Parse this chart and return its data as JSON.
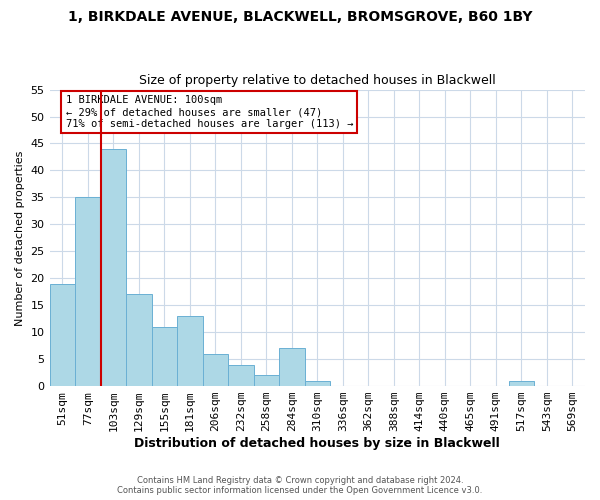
{
  "title1": "1, BIRKDALE AVENUE, BLACKWELL, BROMSGROVE, B60 1BY",
  "title2": "Size of property relative to detached houses in Blackwell",
  "xlabel": "Distribution of detached houses by size in Blackwell",
  "ylabel": "Number of detached properties",
  "bin_labels": [
    "51sqm",
    "77sqm",
    "103sqm",
    "129sqm",
    "155sqm",
    "181sqm",
    "206sqm",
    "232sqm",
    "258sqm",
    "284sqm",
    "310sqm",
    "336sqm",
    "362sqm",
    "388sqm",
    "414sqm",
    "440sqm",
    "465sqm",
    "491sqm",
    "517sqm",
    "543sqm",
    "569sqm"
  ],
  "bar_heights": [
    19,
    35,
    44,
    17,
    11,
    13,
    6,
    4,
    2,
    7,
    1,
    0,
    0,
    0,
    0,
    0,
    0,
    0,
    1,
    0,
    0
  ],
  "bar_color": "#add8e6",
  "bar_edge_color": "#6ab0d4",
  "highlight_line_index": 2,
  "highlight_line_color": "#cc0000",
  "ylim": [
    0,
    55
  ],
  "yticks": [
    0,
    5,
    10,
    15,
    20,
    25,
    30,
    35,
    40,
    45,
    50,
    55
  ],
  "annotation_title": "1 BIRKDALE AVENUE: 100sqm",
  "annotation_line1": "← 29% of detached houses are smaller (47)",
  "annotation_line2": "71% of semi-detached houses are larger (113) →",
  "footer1": "Contains HM Land Registry data © Crown copyright and database right 2024.",
  "footer2": "Contains public sector information licensed under the Open Government Licence v3.0.",
  "background_color": "#ffffff",
  "grid_color": "#ccd9e8"
}
